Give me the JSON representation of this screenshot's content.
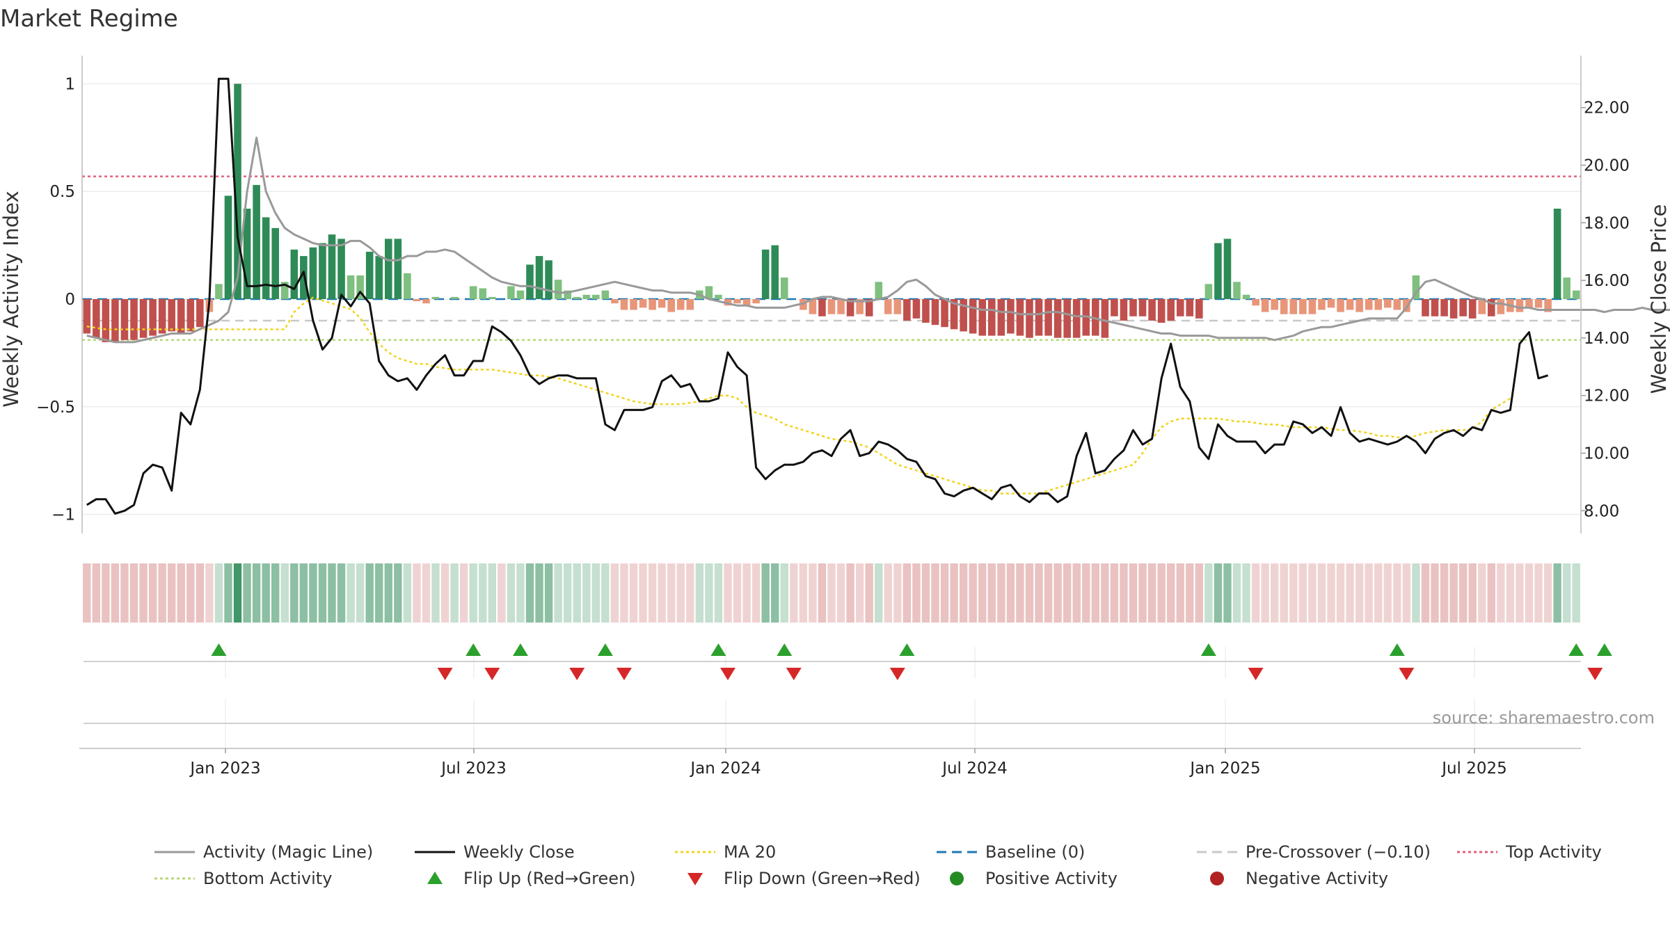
{
  "title": "Market Regime",
  "source_note": "source: sharemaestro.com",
  "colors": {
    "strong_positive": "#2e8b57",
    "weak_positive": "#7fbf7f",
    "strong_negative": "#c0504d",
    "weak_negative": "#e8967a",
    "weekly_close": "#111111",
    "activity_line": "#999999",
    "ma20": "#f2d31b",
    "baseline": "#1f77b4",
    "pre_crossover": "#c8c8c8",
    "top_activity": "#e0607e",
    "bottom_activity": "#b5d87a",
    "flip_up": "#2ca02c",
    "flip_down": "#d62728",
    "positive_dot": "#228b22",
    "negative_dot": "#b22222"
  },
  "chart_data": {
    "type": "bar",
    "title": "Market Regime",
    "x_axis": {
      "label": "",
      "tick_labels": [
        "Jan 2023",
        "Jul 2023",
        "Jan 2024",
        "Jul 2024",
        "Jan 2025",
        "Jul 2025"
      ]
    },
    "y_left": {
      "label": "Weekly Activity Index",
      "ticks": [
        "1",
        "0.5",
        "0",
        "−0.5",
        "−1"
      ],
      "range": [
        -1.05,
        1.05
      ]
    },
    "y_right": {
      "label": "Weekly Close Price",
      "ticks": [
        "22.00",
        "20.00",
        "18.00",
        "16.00",
        "14.00",
        "12.00",
        "10.00",
        "8.00"
      ],
      "range": [
        7.5,
        23.2
      ]
    },
    "reference_lines": {
      "baseline": 0,
      "pre_crossover": -0.1,
      "top_activity": 0.57,
      "bottom_activity": -0.19
    },
    "grid": true,
    "legend_position": "bottom",
    "series": [
      {
        "name": "Activity (Magic Line)",
        "type": "line",
        "values": [
          -0.17,
          -0.18,
          -0.19,
          -0.2,
          -0.2,
          -0.2,
          -0.19,
          -0.18,
          -0.17,
          -0.16,
          -0.16,
          -0.16,
          -0.14,
          -0.12,
          -0.1,
          -0.06,
          0.1,
          0.5,
          0.75,
          0.5,
          0.4,
          0.33,
          0.3,
          0.28,
          0.26,
          0.25,
          0.25,
          0.25,
          0.27,
          0.27,
          0.24,
          0.2,
          0.18,
          0.18,
          0.2,
          0.2,
          0.22,
          0.22,
          0.23,
          0.22,
          0.19,
          0.16,
          0.13,
          0.1,
          0.08,
          0.07,
          0.06,
          0.06,
          0.05,
          0.04,
          0.03,
          0.03,
          0.04,
          0.05,
          0.06,
          0.07,
          0.08,
          0.07,
          0.06,
          0.05,
          0.04,
          0.04,
          0.03,
          0.03,
          0.03,
          0.02,
          0.0,
          -0.01,
          -0.02,
          -0.03,
          -0.03,
          -0.04,
          -0.04,
          -0.04,
          -0.04,
          -0.03,
          -0.02,
          0.0,
          0.01,
          0.01,
          0.0,
          -0.01,
          -0.01,
          -0.01,
          0.0,
          0.01,
          0.04,
          0.08,
          0.09,
          0.06,
          0.02,
          0.0,
          -0.02,
          -0.03,
          -0.04,
          -0.05,
          -0.05,
          -0.06,
          -0.06,
          -0.07,
          -0.07,
          -0.07,
          -0.06,
          -0.06,
          -0.07,
          -0.08,
          -0.08,
          -0.09,
          -0.1,
          -0.11,
          -0.12,
          -0.13,
          -0.14,
          -0.15,
          -0.16,
          -0.16,
          -0.17,
          -0.17,
          -0.17,
          -0.17,
          -0.18,
          -0.18,
          -0.18,
          -0.18,
          -0.18,
          -0.18,
          -0.19,
          -0.18,
          -0.17,
          -0.15,
          -0.14,
          -0.13,
          -0.13,
          -0.12,
          -0.11,
          -0.1,
          -0.09,
          -0.09,
          -0.09,
          -0.09,
          -0.04,
          0.03,
          0.08,
          0.09,
          0.07,
          0.05,
          0.03,
          0.01,
          0.0,
          -0.02,
          -0.02,
          -0.03,
          -0.04,
          -0.04,
          -0.05,
          -0.05,
          -0.05,
          -0.05,
          -0.05,
          -0.05,
          -0.05,
          -0.06,
          -0.05,
          -0.05,
          -0.05,
          -0.04,
          -0.05,
          -0.05,
          -0.05,
          -0.06,
          -0.06,
          -0.07,
          -0.07,
          -0.08,
          -0.08,
          -0.08,
          -0.08,
          -0.08,
          -0.08,
          -0.07,
          -0.07,
          -0.07,
          -0.06,
          -0.06,
          0.06,
          0.06,
          0.04
        ]
      },
      {
        "name": "Weekly Close",
        "type": "line",
        "axis": "right",
        "values": [
          8.2,
          8.4,
          8.4,
          7.9,
          8.0,
          8.2,
          9.3,
          9.6,
          9.5,
          8.7,
          11.4,
          11.0,
          12.2,
          15.3,
          23.0,
          23.0,
          17.5,
          15.8,
          15.8,
          15.85,
          15.8,
          15.85,
          15.7,
          16.3,
          14.6,
          13.6,
          14.0,
          15.5,
          15.1,
          15.6,
          15.2,
          13.2,
          12.7,
          12.5,
          12.6,
          12.2,
          12.7,
          13.1,
          13.4,
          12.7,
          12.7,
          13.2,
          13.2,
          14.4,
          14.2,
          13.9,
          13.4,
          12.7,
          12.4,
          12.6,
          12.7,
          12.7,
          12.6,
          12.6,
          12.6,
          11.0,
          10.8,
          11.5,
          11.5,
          11.5,
          11.6,
          12.5,
          12.7,
          12.3,
          12.4,
          11.8,
          11.8,
          11.9,
          13.5,
          13.0,
          12.7,
          9.5,
          9.1,
          9.4,
          9.6,
          9.6,
          9.7,
          10.0,
          10.1,
          9.9,
          10.5,
          10.8,
          9.9,
          10.0,
          10.4,
          10.3,
          10.1,
          9.8,
          9.7,
          9.2,
          9.1,
          8.6,
          8.5,
          8.7,
          8.8,
          8.6,
          8.4,
          8.8,
          8.9,
          8.5,
          8.3,
          8.6,
          8.6,
          8.3,
          8.5,
          9.9,
          10.7,
          9.3,
          9.4,
          9.8,
          10.1,
          10.8,
          10.3,
          10.5,
          12.6,
          13.8,
          12.3,
          11.8,
          10.2,
          9.8,
          11.0,
          10.6,
          10.4,
          10.4,
          10.4,
          10.0,
          10.3,
          10.3,
          11.1,
          11.0,
          10.7,
          10.9,
          10.6,
          11.6,
          10.7,
          10.4,
          10.5,
          10.4,
          10.3,
          10.4,
          10.6,
          10.4,
          10.0,
          10.5,
          10.7,
          10.8,
          10.6,
          10.9,
          10.8,
          11.5,
          11.4,
          11.5,
          13.8,
          14.2,
          12.6,
          12.7
        ]
      },
      {
        "name": "MA 20",
        "type": "line",
        "axis": "right",
        "values": [
          14.4,
          14.35,
          14.3,
          14.3,
          14.3,
          14.3,
          14.3,
          14.3,
          14.3,
          14.3,
          14.3,
          14.3,
          14.3,
          14.3,
          14.3,
          14.3,
          14.3,
          14.3,
          14.3,
          14.3,
          14.3,
          14.3,
          14.9,
          15.2,
          15.4,
          15.3,
          15.2,
          15.1,
          15.0,
          14.7,
          14.2,
          13.8,
          13.5,
          13.3,
          13.2,
          13.1,
          13.1,
          13.0,
          12.95,
          12.9,
          12.9,
          12.9,
          12.9,
          12.9,
          12.85,
          12.8,
          12.75,
          12.7,
          12.7,
          12.65,
          12.6,
          12.5,
          12.4,
          12.3,
          12.2,
          12.1,
          12.0,
          11.9,
          11.8,
          11.75,
          11.7,
          11.7,
          11.7,
          11.7,
          11.75,
          11.8,
          11.9,
          12.0,
          12.0,
          11.9,
          11.6,
          11.4,
          11.3,
          11.2,
          11.0,
          10.9,
          10.8,
          10.7,
          10.6,
          10.5,
          10.45,
          10.4,
          10.3,
          10.2,
          10.0,
          9.8,
          9.6,
          9.5,
          9.4,
          9.3,
          9.2,
          9.1,
          9.0,
          8.9,
          8.8,
          8.7,
          8.7,
          8.6,
          8.6,
          8.6,
          8.6,
          8.6,
          8.7,
          8.8,
          8.9,
          9.0,
          9.1,
          9.2,
          9.3,
          9.4,
          9.5,
          9.6,
          10.0,
          10.5,
          10.9,
          11.1,
          11.2,
          11.2,
          11.2,
          11.2,
          11.2,
          11.15,
          11.1,
          11.1,
          11.05,
          11.0,
          11.0,
          10.95,
          10.9,
          10.9,
          10.9,
          10.9,
          10.85,
          10.8,
          10.8,
          10.75,
          10.7,
          10.6,
          10.6,
          10.55,
          10.55,
          10.6,
          10.7,
          10.75,
          10.8,
          10.8,
          10.8,
          10.85,
          11.1,
          11.5,
          11.7,
          11.9
        ]
      },
      {
        "name": "Baseline (0)",
        "type": "reference",
        "value": 0
      },
      {
        "name": "Pre-Crossover (−0.10)",
        "type": "reference",
        "value": -0.1
      },
      {
        "name": "Top Activity",
        "type": "reference",
        "value": 0.57
      },
      {
        "name": "Bottom Activity",
        "type": "reference",
        "value": -0.19
      },
      {
        "name": "Flip Up (Red→Green)",
        "type": "marker",
        "week_index": [
          14,
          41,
          46,
          55,
          67,
          74,
          87,
          119,
          139,
          158,
          161
        ]
      },
      {
        "name": "Flip Down (Green→Red)",
        "type": "marker",
        "week_index": [
          38,
          43,
          52,
          57,
          68,
          75,
          86,
          124,
          140,
          160
        ]
      },
      {
        "name": "Positive Activity",
        "type": "legend-only"
      },
      {
        "name": "Negative Activity",
        "type": "legend-only"
      },
      {
        "name": "Weekly Activity Index",
        "type": "bar",
        "values": [
          -0.16,
          -0.18,
          -0.2,
          -0.2,
          -0.19,
          -0.19,
          -0.18,
          -0.17,
          -0.16,
          -0.15,
          -0.16,
          -0.15,
          -0.13,
          -0.06,
          0.07,
          0.48,
          1.0,
          0.42,
          0.53,
          0.38,
          0.33,
          0.08,
          0.23,
          0.2,
          0.24,
          0.26,
          0.3,
          0.28,
          0.11,
          0.11,
          0.22,
          0.2,
          0.28,
          0.28,
          0.12,
          -0.01,
          -0.02,
          0.01,
          0.0,
          0.01,
          0.0,
          0.06,
          0.05,
          0.01,
          0.0,
          0.06,
          0.04,
          0.16,
          0.2,
          0.18,
          0.09,
          0.04,
          0.01,
          0.02,
          0.02,
          0.04,
          -0.02,
          -0.05,
          -0.05,
          -0.04,
          -0.05,
          -0.04,
          -0.06,
          -0.05,
          -0.05,
          0.04,
          0.06,
          0.02,
          -0.03,
          -0.02,
          -0.03,
          -0.02,
          0.23,
          0.25,
          0.1,
          0.0,
          -0.05,
          -0.07,
          -0.08,
          -0.07,
          -0.07,
          -0.08,
          -0.07,
          -0.08,
          0.08,
          -0.07,
          -0.07,
          -0.1,
          -0.09,
          -0.11,
          -0.12,
          -0.13,
          -0.14,
          -0.15,
          -0.16,
          -0.17,
          -0.17,
          -0.17,
          -0.16,
          -0.17,
          -0.18,
          -0.17,
          -0.17,
          -0.18,
          -0.18,
          -0.18,
          -0.17,
          -0.17,
          -0.18,
          -0.08,
          -0.1,
          -0.08,
          -0.08,
          -0.1,
          -0.11,
          -0.1,
          -0.08,
          -0.08,
          -0.09,
          0.07,
          0.26,
          0.28,
          0.08,
          0.02,
          -0.03,
          -0.06,
          -0.05,
          -0.07,
          -0.07,
          -0.07,
          -0.07,
          -0.05,
          -0.04,
          -0.06,
          -0.05,
          -0.06,
          -0.05,
          -0.05,
          -0.04,
          -0.05,
          -0.06,
          0.11,
          -0.08,
          -0.08,
          -0.08,
          -0.09,
          -0.08,
          -0.09,
          -0.07,
          -0.08,
          -0.07,
          -0.06,
          -0.06,
          -0.04,
          -0.04,
          -0.06,
          0.42,
          0.1,
          0.04
        ]
      }
    ]
  }
}
